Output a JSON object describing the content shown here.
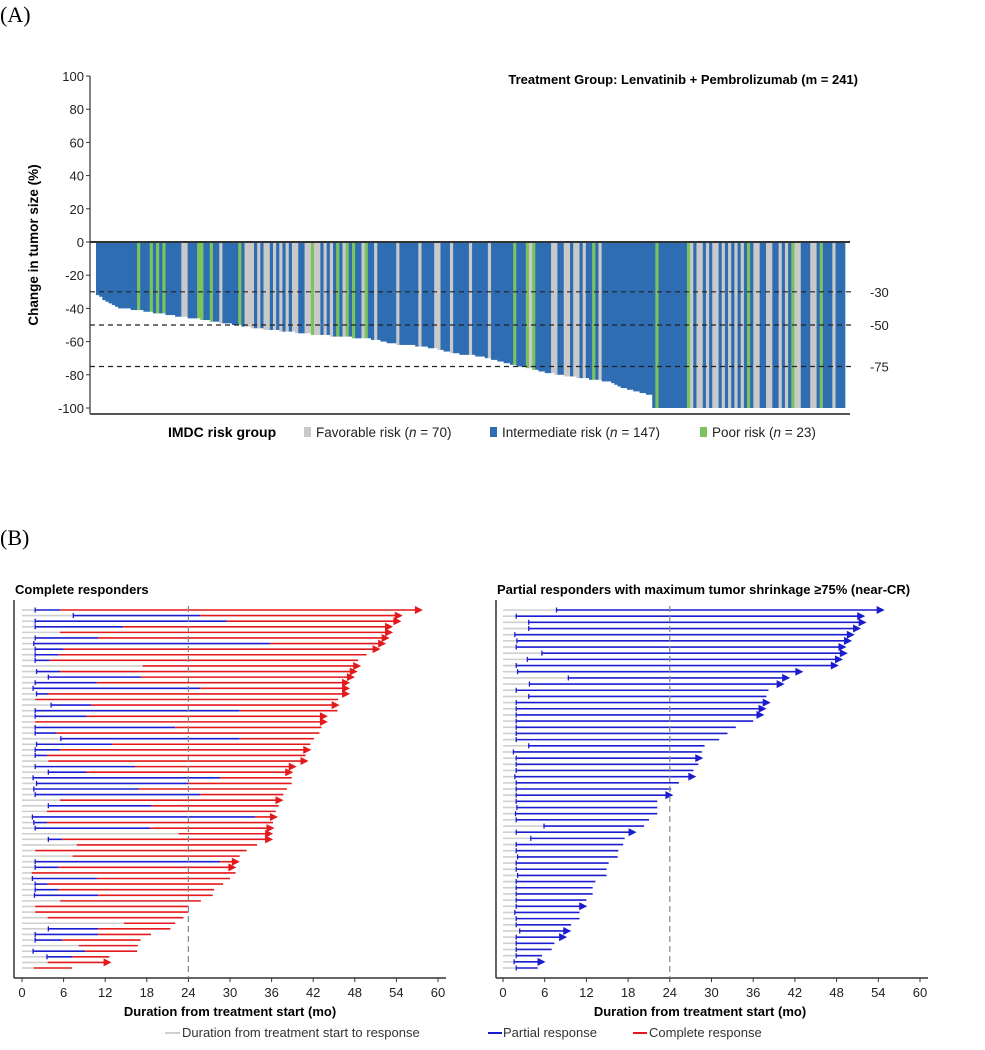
{
  "panel_labels": {
    "a": "(A)",
    "b": "(B)"
  },
  "colors": {
    "favorable": "#c9c9c9",
    "intermediate": "#2f6db3",
    "poor": "#7cc35e",
    "pr_line": "#1c1cd0",
    "cr_line": "#e3191c",
    "pre_response": "#cfcfcf"
  },
  "chart_data": [
    {
      "type": "bar",
      "title": "Treatment Group: Lenvatinib + Pembrolizumab (m = 241)",
      "ylabel": "Change in tumor size (%)",
      "ylim": [
        -100,
        100
      ],
      "yticks": [
        100,
        80,
        60,
        40,
        20,
        0,
        -20,
        -40,
        -60,
        -80,
        -100
      ],
      "reference_lines": [
        {
          "value": -30,
          "label": "-30"
        },
        {
          "value": -50,
          "label": "-50"
        },
        {
          "value": -75,
          "label": "-75"
        }
      ],
      "legend": {
        "title": "IMDC risk group",
        "entries": [
          {
            "key": "F",
            "label_pre": "Favorable risk (",
            "n_label": "n",
            "label_post": " = 70)"
          },
          {
            "key": "I",
            "label_pre": "Intermediate risk (",
            "n_label": "n",
            "label_post": " = 147)"
          },
          {
            "key": "P",
            "label_pre": "Poor risk (",
            "n_label": "n",
            "label_post": " = 23)"
          }
        ]
      },
      "values": [
        -32,
        -33,
        -35,
        -36,
        -37,
        -38,
        -39,
        -40,
        -40,
        -40,
        -40,
        -41,
        -41,
        -41,
        -41,
        -42,
        -42,
        -42,
        -43,
        -43,
        -43,
        -43,
        -44,
        -44,
        -44,
        -45,
        -45,
        -45,
        -45,
        -46,
        -46,
        -46,
        -46,
        -47,
        -47,
        -47,
        -48,
        -48,
        -48,
        -49,
        -49,
        -49,
        -49,
        -50,
        -50,
        -50,
        -51,
        -51,
        -51,
        -52,
        -52,
        -52,
        -52,
        -53,
        -53,
        -53,
        -53,
        -53,
        -54,
        -54,
        -54,
        -54,
        -54,
        -55,
        -55,
        -55,
        -55,
        -55,
        -56,
        -56,
        -56,
        -56,
        -56,
        -56,
        -57,
        -57,
        -57,
        -57,
        -57,
        -57,
        -57,
        -58,
        -58,
        -58,
        -58,
        -58,
        -58,
        -59,
        -59,
        -59,
        -60,
        -60,
        -61,
        -61,
        -61,
        -62,
        -62,
        -62,
        -62,
        -62,
        -62,
        -63,
        -63,
        -63,
        -63,
        -64,
        -64,
        -64,
        -65,
        -65,
        -66,
        -66,
        -67,
        -67,
        -67,
        -68,
        -68,
        -68,
        -68,
        -68,
        -69,
        -69,
        -69,
        -70,
        -70,
        -71,
        -71,
        -72,
        -72,
        -73,
        -73,
        -74,
        -74,
        -75,
        -75,
        -75,
        -76,
        -76,
        -77,
        -77,
        -78,
        -78,
        -79,
        -79,
        -79,
        -80,
        -80,
        -80,
        -81,
        -81,
        -81,
        -81,
        -82,
        -82,
        -82,
        -82,
        -83,
        -83,
        -83,
        -83,
        -84,
        -84,
        -84,
        -85,
        -86,
        -87,
        -88,
        -88,
        -89,
        -89,
        -90,
        -90,
        -91,
        -91,
        -92,
        -92,
        -100,
        -100,
        -100,
        -100,
        -100,
        -100,
        -100,
        -100,
        -100,
        -100,
        -100,
        -100,
        -100,
        -100,
        -100,
        -100,
        -100,
        -100,
        -100,
        -100,
        -100,
        -100,
        -100,
        -100,
        -100,
        -100,
        -100,
        -100,
        -100,
        -100,
        -100,
        -100,
        -100,
        -100,
        -100,
        -100,
        -100,
        -100,
        -100,
        -100,
        -100,
        -100,
        -100,
        -100,
        -100,
        -100,
        -100,
        -100,
        -100,
        -100,
        -100,
        -100,
        -100,
        -100,
        -100,
        -100,
        -100,
        -100,
        -100,
        -100,
        -100
      ],
      "risk": "IIIIIIIIIIIIIPIIIPIPIPIIIIIFFIIIPPIIPIIFIIIIIPIFFFIFIFFIFIFIFIFFIIFFPFFIFIFIPIFPIPIIFPIIFIIIIIIFIIIIIIFIIIIFFIIIFIIIIIFIIIIIFIIIIIIIPIIIPFPIIIIIFFIIFFIFFIFIIPIFIIIIIIIIIIIIIIIIIPIIIIIIIIIPFIFFIFIFFIFIFIFIFIPIFFIIFFIIFIFIPFFIIIFFIPIIIFIIIFIIFI"
    },
    {
      "type": "swimmer",
      "title": "Complete responders",
      "xlabel": "Duration from treatment start (mo)",
      "xlim": [
        0,
        60
      ],
      "xticks": [
        0,
        6,
        12,
        18,
        24,
        30,
        36,
        42,
        48,
        54,
        60
      ],
      "reference_line": 24,
      "row_fields": [
        "response_time",
        "complete_response_time",
        "end_time",
        "ongoing"
      ],
      "rows": [
        [
          1.9,
          5.5,
          57.1,
          1
        ],
        [
          7.4,
          25.7,
          54.2,
          1
        ],
        [
          1.9,
          29.5,
          54,
          1
        ],
        [
          1.9,
          14.6,
          52.8,
          1
        ],
        [
          5.5,
          5.5,
          52.8,
          1
        ],
        [
          1.9,
          11,
          52.3,
          1
        ],
        [
          1.7,
          35.8,
          51.8,
          1
        ],
        [
          1.9,
          6,
          51,
          1
        ],
        [
          1.9,
          5.3,
          49.7,
          0
        ],
        [
          1.9,
          4,
          48.5,
          0
        ],
        [
          17.4,
          17.4,
          48.2,
          1
        ],
        [
          2.1,
          5.5,
          47.7,
          1
        ],
        [
          3.8,
          17.2,
          47.3,
          1
        ],
        [
          1.9,
          10.8,
          46.6,
          1
        ],
        [
          1.6,
          25.7,
          46.6,
          1
        ],
        [
          2.1,
          3.8,
          46.6,
          1
        ],
        [
          1.9,
          1.9,
          45.6,
          0
        ],
        [
          4.2,
          10,
          45.1,
          1
        ],
        [
          1.9,
          31.4,
          45.5,
          0
        ],
        [
          1.9,
          9.3,
          43.4,
          1
        ],
        [
          1.9,
          1.9,
          43.4,
          1
        ],
        [
          1.9,
          22.1,
          43.2,
          0
        ],
        [
          1.9,
          5,
          42.9,
          0
        ],
        [
          5.6,
          31.4,
          42.1,
          0
        ],
        [
          2.1,
          13,
          41.6,
          0
        ],
        [
          1.9,
          5.5,
          41,
          1
        ],
        [
          1.9,
          3.6,
          40.9,
          0
        ],
        [
          3.8,
          3.8,
          40.6,
          1
        ],
        [
          1.9,
          16.3,
          38.9,
          1
        ],
        [
          3.8,
          9.3,
          38.4,
          1
        ],
        [
          1.6,
          28.6,
          38.9,
          0
        ],
        [
          2.1,
          24,
          38.9,
          0
        ],
        [
          1.7,
          16.8,
          38.2,
          0
        ],
        [
          1.9,
          25.7,
          37.7,
          0
        ],
        [
          5.5,
          5.5,
          37,
          1
        ],
        [
          3.8,
          18.7,
          37,
          0
        ],
        [
          3.6,
          3.6,
          36.6,
          0
        ],
        [
          1.5,
          33.6,
          36.2,
          1
        ],
        [
          1.7,
          3.6,
          36.2,
          0
        ],
        [
          1.9,
          18.5,
          35.7,
          1
        ],
        [
          22.6,
          22.6,
          35.5,
          1
        ],
        [
          3.8,
          5.8,
          35.5,
          1
        ],
        [
          7.9,
          7.9,
          33.9,
          0
        ],
        [
          1.9,
          1.9,
          32.4,
          0
        ],
        [
          7.3,
          7.3,
          31.4,
          0
        ],
        [
          1.9,
          28.6,
          30.7,
          1
        ],
        [
          1.9,
          5.3,
          30.2,
          1
        ],
        [
          1.4,
          1.4,
          30.8,
          0
        ],
        [
          1.5,
          10.8,
          30,
          0
        ],
        [
          1.9,
          3.7,
          29,
          0
        ],
        [
          1.9,
          5.3,
          27.7,
          0
        ],
        [
          1.8,
          11,
          27.5,
          0
        ],
        [
          5.5,
          5.5,
          25.8,
          0
        ],
        [
          1.9,
          1.9,
          24,
          0
        ],
        [
          1.9,
          1.9,
          24,
          0
        ],
        [
          3.7,
          3.7,
          23.3,
          0
        ],
        [
          14.7,
          14.7,
          22.1,
          0
        ],
        [
          3.8,
          11,
          21.4,
          0
        ],
        [
          1.9,
          11,
          18.6,
          0
        ],
        [
          1.9,
          5.8,
          17.1,
          0
        ],
        [
          8.2,
          8.2,
          16.7,
          0
        ],
        [
          1.6,
          9.1,
          16.6,
          0
        ],
        [
          3.6,
          7.3,
          12.6,
          0
        ],
        [
          3.7,
          3.7,
          12.2,
          1
        ],
        [
          1.7,
          1.7,
          7.2,
          0
        ]
      ]
    },
    {
      "type": "swimmer",
      "title": "Partial responders with maximum tumor shrinkage ≥75%  (near-CR)",
      "xlabel": "Duration from treatment start (mo)",
      "xlim": [
        0,
        60
      ],
      "xticks": [
        0,
        6,
        12,
        18,
        24,
        30,
        36,
        42,
        48,
        54,
        60
      ],
      "reference_line": 24,
      "row_fields": [
        "response_time",
        "end_time",
        "ongoing"
      ],
      "rows": [
        [
          7.7,
          54.2,
          1
        ],
        [
          1.9,
          51.4,
          1
        ],
        [
          3.7,
          51.6,
          1
        ],
        [
          3.7,
          50.8,
          1
        ],
        [
          1.7,
          49.9,
          1
        ],
        [
          2.0,
          49.5,
          1
        ],
        [
          1.9,
          48.7,
          1
        ],
        [
          5.6,
          48.9,
          1
        ],
        [
          3.5,
          48.2,
          1
        ],
        [
          1.9,
          47.6,
          1
        ],
        [
          2.1,
          42.5,
          1
        ],
        [
          9.4,
          40.6,
          1
        ],
        [
          3.8,
          39.8,
          1
        ],
        [
          1.9,
          38.2,
          0
        ],
        [
          3.7,
          37.9,
          0
        ],
        [
          1.9,
          37.8,
          1
        ],
        [
          1.9,
          37.2,
          1
        ],
        [
          1.9,
          36.9,
          1
        ],
        [
          1.9,
          36,
          0
        ],
        [
          1.9,
          33.5,
          0
        ],
        [
          1.9,
          32.3,
          0
        ],
        [
          1.9,
          31.1,
          0
        ],
        [
          3.7,
          29,
          0
        ],
        [
          1.5,
          28.6,
          0
        ],
        [
          1.9,
          28.1,
          1
        ],
        [
          1.9,
          28.1,
          0
        ],
        [
          1.9,
          27.4,
          0
        ],
        [
          1.7,
          27.1,
          1
        ],
        [
          1.9,
          25.3,
          0
        ],
        [
          1.9,
          24.2,
          0
        ],
        [
          1.9,
          23.8,
          1
        ],
        [
          1.9,
          22.2,
          0
        ],
        [
          2.0,
          22.2,
          0
        ],
        [
          1.8,
          22.2,
          0
        ],
        [
          1.9,
          21,
          0
        ],
        [
          5.9,
          20.3,
          0
        ],
        [
          1.9,
          18.5,
          1
        ],
        [
          4.0,
          17.5,
          0
        ],
        [
          1.9,
          17.3,
          0
        ],
        [
          1.9,
          16.6,
          0
        ],
        [
          2.1,
          16.5,
          0
        ],
        [
          1.9,
          15.2,
          0
        ],
        [
          1.9,
          14.9,
          0
        ],
        [
          2.1,
          14.9,
          0
        ],
        [
          1.9,
          13.3,
          0
        ],
        [
          1.9,
          12.9,
          0
        ],
        [
          1.9,
          12.9,
          0
        ],
        [
          1.9,
          12,
          0
        ],
        [
          1.9,
          11.4,
          1
        ],
        [
          1.7,
          11,
          0
        ],
        [
          1.9,
          11,
          0
        ],
        [
          1.9,
          9.8,
          0
        ],
        [
          2.4,
          9.1,
          1
        ],
        [
          1.9,
          8.5,
          1
        ],
        [
          1.9,
          7.4,
          0
        ],
        [
          1.9,
          7,
          0
        ],
        [
          1.9,
          5.6,
          0
        ],
        [
          1.6,
          5.4,
          1
        ],
        [
          1.9,
          5,
          0
        ]
      ]
    }
  ],
  "swimmer_legend": [
    {
      "key": "pre",
      "label": "Duration from treatment start to response"
    },
    {
      "key": "pr",
      "label": "Partial response"
    },
    {
      "key": "cr",
      "label": "Complete response"
    }
  ]
}
